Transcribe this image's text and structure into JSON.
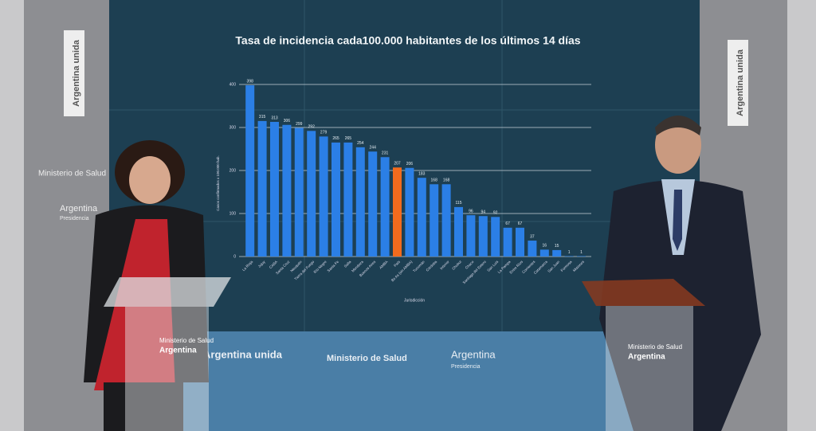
{
  "chart_data": {
    "type": "bar",
    "title": "Tasa de incidencia cada100.000 habitantes de los últimos 14 días",
    "y_label": "Casos confirmados x 100.000 hab.",
    "x_label": "Jurisdicción",
    "categories": [
      "La Rioja",
      "Jujuy",
      "CABA",
      "Santa Cruz",
      "Neuquén",
      "Tierra del Fuego",
      "Río Negro",
      "Santa Fe",
      "Salta",
      "Mendoza",
      "Buenos Aires",
      "AMBA",
      "País",
      "Bs As (sin AMBA)",
      "Tucumán",
      "Córdoba",
      "Interior",
      "Chubut",
      "Chaco",
      "Santiago del Estero",
      "San Luis",
      "La Pampa",
      "Entre Ríos",
      "Corrientes",
      "Catamarca",
      "San Juan",
      "Formosa",
      "Misiones"
    ],
    "values": [
      398,
      315,
      313,
      306,
      299,
      292,
      279,
      265,
      265,
      254,
      244,
      231,
      207,
      206,
      183,
      168,
      168,
      115,
      96,
      94,
      92,
      67,
      67,
      37,
      16,
      15,
      1,
      1
    ],
    "colors": [
      "#2b7fe6",
      "#2b7fe6",
      "#2b7fe6",
      "#2b7fe6",
      "#2b7fe6",
      "#2b7fe6",
      "#2b7fe6",
      "#2b7fe6",
      "#2b7fe6",
      "#2b7fe6",
      "#2b7fe6",
      "#2b7fe6",
      "#f26b1d",
      "#2b7fe6",
      "#2b7fe6",
      "#2b7fe6",
      "#2b7fe6",
      "#2b7fe6",
      "#2b7fe6",
      "#2b7fe6",
      "#2b7fe6",
      "#2b7fe6",
      "#2b7fe6",
      "#2b7fe6",
      "#2b7fe6",
      "#2b7fe6",
      "#2b7fe6",
      "#2b7fe6"
    ],
    "ylim": [
      0,
      400
    ],
    "yticks": [
      0,
      100,
      200,
      300,
      400
    ],
    "grid": true
  },
  "scene": {
    "banner_left": "Argentina unida",
    "banner_right": "Argentina unida",
    "ministry_left": "Ministerio de Salud",
    "argentina_left": "Argentina",
    "presidencia_left": "Presidencia",
    "floor_unida": "Argentina unida",
    "floor_ministry": "Ministerio de Salud",
    "floor_argentina": "Argentina",
    "floor_presidencia": "Presidencia",
    "podium_left_ministry": "Ministerio de Salud",
    "podium_left_argentina": "Argentina",
    "podium_right_ministry": "Ministerio de Salud",
    "podium_right_argentina": "Argentina"
  }
}
